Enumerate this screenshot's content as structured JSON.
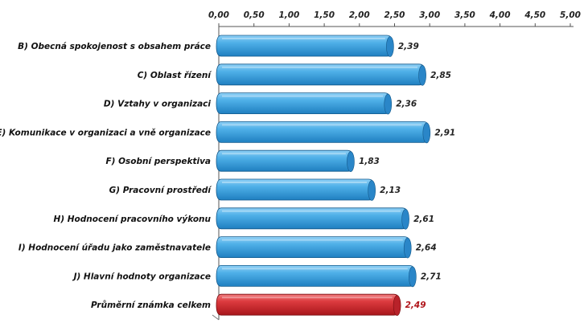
{
  "chart_data": {
    "type": "bar",
    "orientation": "horizontal",
    "title": "",
    "xlabel": "",
    "ylabel": "",
    "xlim": [
      0,
      5
    ],
    "x_ticks": [
      "0,00",
      "0,50",
      "1,00",
      "1,50",
      "2,00",
      "2,50",
      "3,00",
      "3,50",
      "4,00",
      "4,50",
      "5,00"
    ],
    "x_axis_position": "top",
    "grid": false,
    "bar_style": "3d-cylinder",
    "colors": {
      "default": "#3da0dc",
      "highlight": "#d42a2f",
      "value_highlight": "#b0151b"
    },
    "bars": [
      {
        "category": "B) Obecná spokojenost s obsahem práce",
        "value": 2.39,
        "label": "2,39",
        "highlight": false
      },
      {
        "category": "C) Oblast řízení",
        "value": 2.85,
        "label": "2,85",
        "highlight": false
      },
      {
        "category": "D) Vztahy v organizaci",
        "value": 2.36,
        "label": "2,36",
        "highlight": false
      },
      {
        "category": "E) Komunikace v organizaci a vně organizace",
        "value": 2.91,
        "label": "2,91",
        "highlight": false
      },
      {
        "category": "F) Osobní perspektiva",
        "value": 1.83,
        "label": "1,83",
        "highlight": false
      },
      {
        "category": "G) Pracovní prostředí",
        "value": 2.13,
        "label": "2,13",
        "highlight": false
      },
      {
        "category": "H) Hodnocení pracovního výkonu",
        "value": 2.61,
        "label": "2,61",
        "highlight": false
      },
      {
        "category": "I) Hodnocení úřadu jako zaměstnavatele",
        "value": 2.64,
        "label": "2,64",
        "highlight": false
      },
      {
        "category": "J) Hlavní hodnoty organizace",
        "value": 2.71,
        "label": "2,71",
        "highlight": false
      },
      {
        "category": "Průměrní známka celkem",
        "value": 2.49,
        "label": "2,49",
        "highlight": true
      }
    ]
  }
}
